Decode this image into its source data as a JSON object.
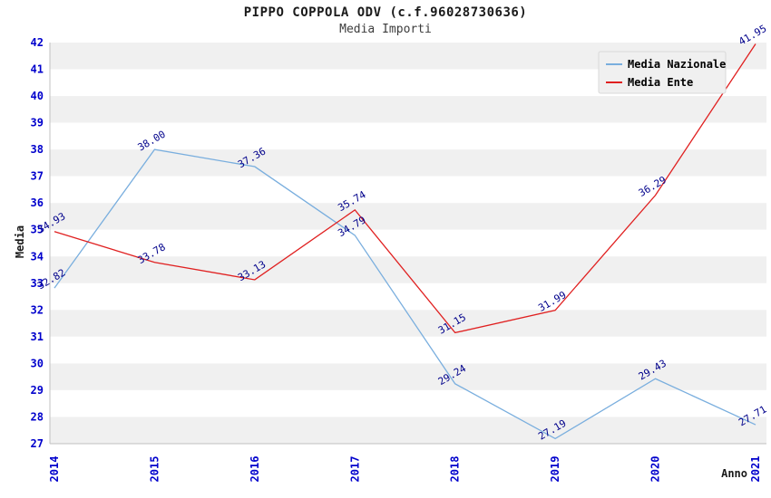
{
  "title": "PIPPO COPPOLA ODV (c.f.96028730636)",
  "subtitle": "Media Importi",
  "colors": {
    "band": "#f0f0f0",
    "axis": "#c0c0c0",
    "tick": "#0000cc",
    "point_label": "#00008b",
    "legend_bg": "#f0f0f0",
    "legend_border": "#d9d9d9",
    "series_nazionale": "#79aede",
    "series_ente": "#e02020"
  },
  "chart_data": {
    "type": "line",
    "x": [
      "2014",
      "2015",
      "2016",
      "2017",
      "2018",
      "2019",
      "2020",
      "2021"
    ],
    "series": [
      {
        "name": "Media Nazionale",
        "color": "#79aede",
        "values": [
          32.82,
          38.0,
          37.36,
          34.79,
          29.24,
          27.19,
          29.43,
          27.71
        ]
      },
      {
        "name": "Media Ente",
        "color": "#e02020",
        "values": [
          34.93,
          33.78,
          33.13,
          35.74,
          31.15,
          31.99,
          36.29,
          41.95
        ]
      }
    ],
    "xlabel": "Anno",
    "ylabel": "Media",
    "ylim": [
      27,
      42
    ],
    "ytick_step": 1,
    "grid": "horizontal-bands",
    "legend_position": "top-right"
  }
}
